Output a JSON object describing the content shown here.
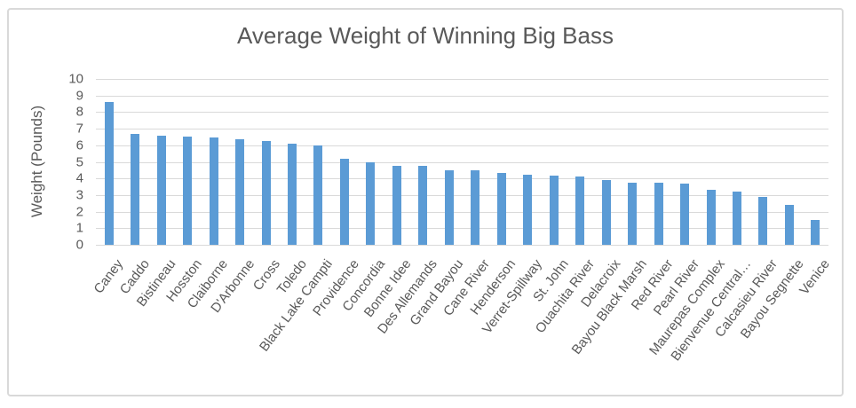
{
  "chart_data": {
    "type": "bar",
    "title": "Average Weight of Winning Big Bass",
    "xlabel": "",
    "ylabel": "Weight (Pounds)",
    "ylim": [
      0,
      10
    ],
    "ytick_step": 1,
    "grid": true,
    "legend": "none",
    "bar_color": "#5b9bd5",
    "gridline_color": "#d9d9d9",
    "text_color": "#595959",
    "categories": [
      "Caney",
      "Caddo",
      "Bistineau",
      "Hosston",
      "Claiborne",
      "D'Arbonne",
      "Cross",
      "Toledo",
      "Black Lake Campti",
      "Providence",
      "Concordia",
      "Bonne Idee",
      "Des Allemands",
      "Grand Bayou",
      "Cane River",
      "Henderson",
      "Verret-Spillway",
      "St. John",
      "Ouachita River",
      "Delacroix",
      "Bayou Black Marsh",
      "Red River",
      "Pearl River",
      "Maurepas Complex",
      "Bienvenue Central…",
      "Calcasieu River",
      "Bayou Segnette",
      "Venice"
    ],
    "values": [
      8.6,
      6.7,
      6.6,
      6.5,
      6.45,
      6.35,
      6.25,
      6.1,
      6.0,
      5.2,
      5.0,
      4.75,
      4.75,
      4.5,
      4.5,
      4.35,
      4.2,
      4.15,
      4.1,
      3.9,
      3.75,
      3.75,
      3.7,
      3.3,
      3.2,
      2.9,
      2.4,
      1.5
    ]
  }
}
